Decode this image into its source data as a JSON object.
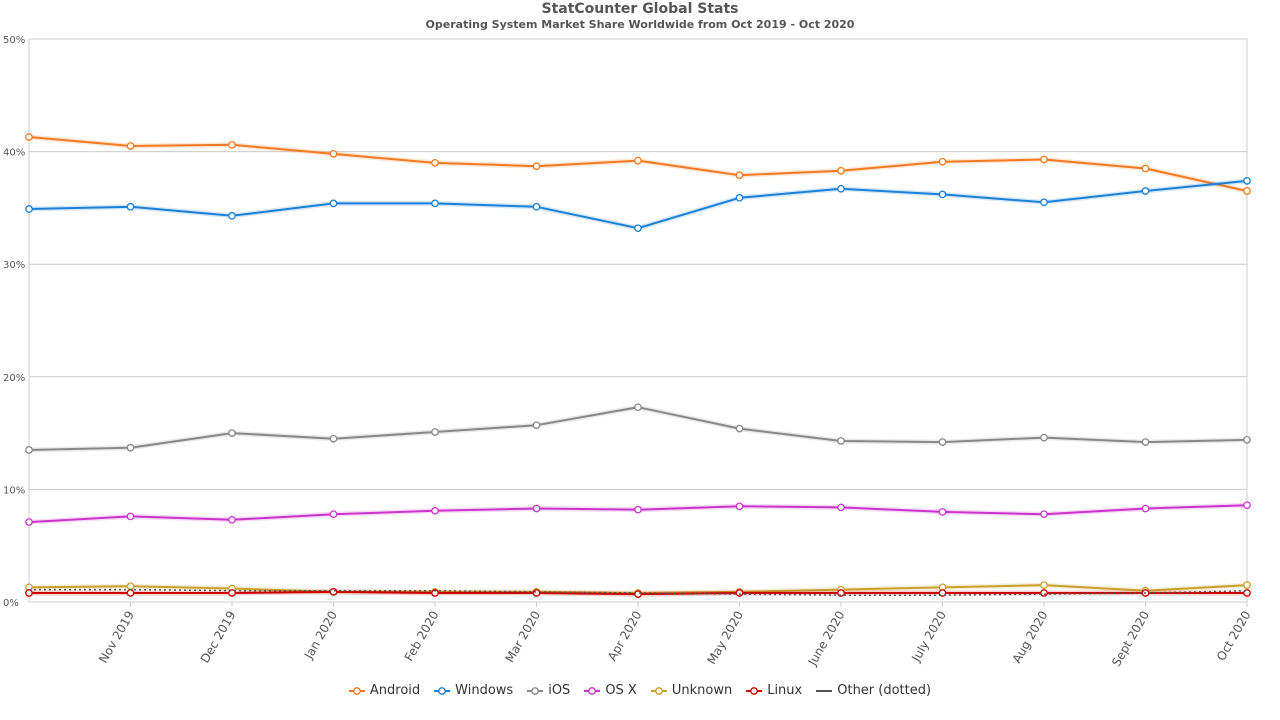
{
  "chart_data": {
    "type": "line",
    "title": "StatCounter Global Stats",
    "subtitle": "Operating System Market Share Worldwide from Oct 2019 - Oct 2020",
    "xlabel": "",
    "ylabel": "",
    "ylim": [
      0,
      50
    ],
    "yticks": [
      "0%",
      "10%",
      "20%",
      "30%",
      "40%",
      "50%"
    ],
    "ytick_values": [
      0,
      10,
      20,
      30,
      40,
      50
    ],
    "categories": [
      "Oct 2019",
      "Nov 2019",
      "Dec 2019",
      "Jan 2020",
      "Feb 2020",
      "Mar 2020",
      "Apr 2020",
      "May 2020",
      "June 2020",
      "July 2020",
      "Aug 2020",
      "Sept 2020",
      "Oct 2020"
    ],
    "xtick_labels": [
      "",
      "Nov 2019",
      "Dec 2019",
      "Jan 2020",
      "Feb 2020",
      "Mar 2020",
      "Apr 2020",
      "May 2020",
      "June 2020",
      "July 2020",
      "Aug 2020",
      "Sept 2020",
      "Oct 2020"
    ],
    "grid": true,
    "legend_position": "bottom",
    "series": [
      {
        "name": "Android",
        "color": "#f47920",
        "dotted": false,
        "values": [
          41.3,
          40.5,
          40.6,
          39.8,
          39.0,
          38.7,
          39.2,
          37.9,
          38.3,
          39.1,
          39.3,
          38.5,
          36.5
        ]
      },
      {
        "name": "Windows",
        "color": "#1a80d8",
        "dotted": false,
        "values": [
          34.9,
          35.1,
          34.3,
          35.4,
          35.4,
          35.1,
          33.2,
          35.9,
          36.7,
          36.2,
          35.5,
          36.5,
          37.4
        ]
      },
      {
        "name": "iOS",
        "color": "#888888",
        "dotted": false,
        "values": [
          13.5,
          13.7,
          15.0,
          14.5,
          15.1,
          15.7,
          17.3,
          15.4,
          14.3,
          14.2,
          14.6,
          14.2,
          14.4
        ]
      },
      {
        "name": "OS X",
        "color": "#cc33cc",
        "dotted": false,
        "values": [
          7.1,
          7.6,
          7.3,
          7.8,
          8.1,
          8.3,
          8.2,
          8.5,
          8.4,
          8.0,
          7.8,
          8.3,
          8.6
        ]
      },
      {
        "name": "Unknown",
        "color": "#c8a02a",
        "dotted": false,
        "values": [
          1.3,
          1.4,
          1.2,
          0.9,
          0.9,
          0.9,
          0.8,
          0.9,
          1.1,
          1.3,
          1.5,
          1.0,
          1.5
        ]
      },
      {
        "name": "Linux",
        "color": "#cc0000",
        "dotted": false,
        "values": [
          0.8,
          0.8,
          0.8,
          0.9,
          0.8,
          0.8,
          0.7,
          0.8,
          0.8,
          0.8,
          0.8,
          0.8,
          0.8
        ]
      },
      {
        "name": "Other (dotted)",
        "color": "#555555",
        "dotted": true,
        "values": [
          1.1,
          1.1,
          1.0,
          1.0,
          1.0,
          0.9,
          0.8,
          0.7,
          0.6,
          0.6,
          0.7,
          0.8,
          1.0
        ]
      }
    ]
  }
}
